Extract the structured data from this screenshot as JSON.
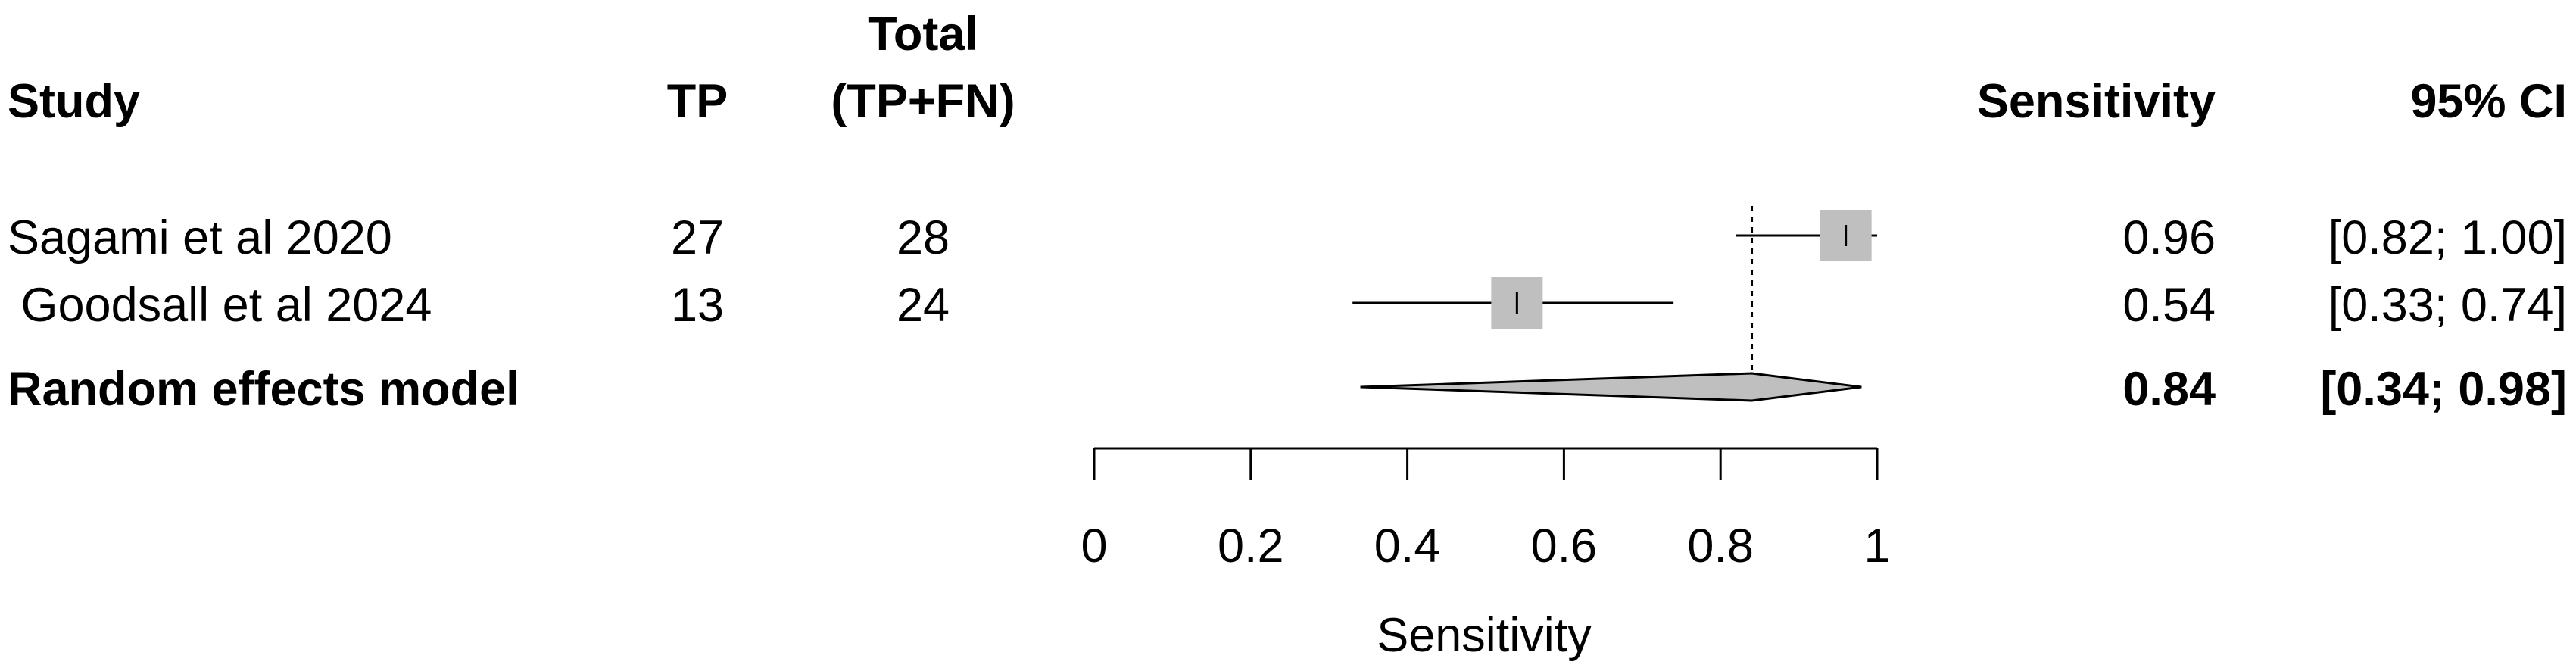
{
  "columns": {
    "study": "Study",
    "tp": "TP",
    "total_line1": "Total",
    "total_line2": "(TP+FN)",
    "sensitivity": "Sensitivity",
    "ci": "95% CI"
  },
  "chart_data": {
    "type": "forest",
    "xlabel": "Sensitivity",
    "xlim": [
      0,
      1
    ],
    "ticks": [
      0,
      0.2,
      0.4,
      0.6,
      0.8,
      1
    ],
    "tick_labels": [
      "0",
      "0.2",
      "0.4",
      "0.6",
      "0.8",
      "1"
    ],
    "reference_line": 0.84,
    "studies": [
      {
        "name": "Sagami et al 2020",
        "tp": "27",
        "total": "28",
        "estimate": 0.96,
        "lower": 0.82,
        "upper": 1.0,
        "est_label": "0.96",
        "ci_label": "[0.82; 1.00]"
      },
      {
        "name": " Goodsall et al 2024",
        "tp": "13",
        "total": "24",
        "estimate": 0.54,
        "lower": 0.33,
        "upper": 0.74,
        "est_label": "0.54",
        "ci_label": "[0.33; 0.74]"
      }
    ],
    "pooled": {
      "name": "Random effects model",
      "estimate": 0.84,
      "lower": 0.34,
      "upper": 0.98,
      "est_label": "0.84",
      "ci_label": "[0.34; 0.98]"
    },
    "colors": {
      "box": "#bfbfbf",
      "diamond": "#bfbfbf",
      "line": "#000000"
    }
  }
}
